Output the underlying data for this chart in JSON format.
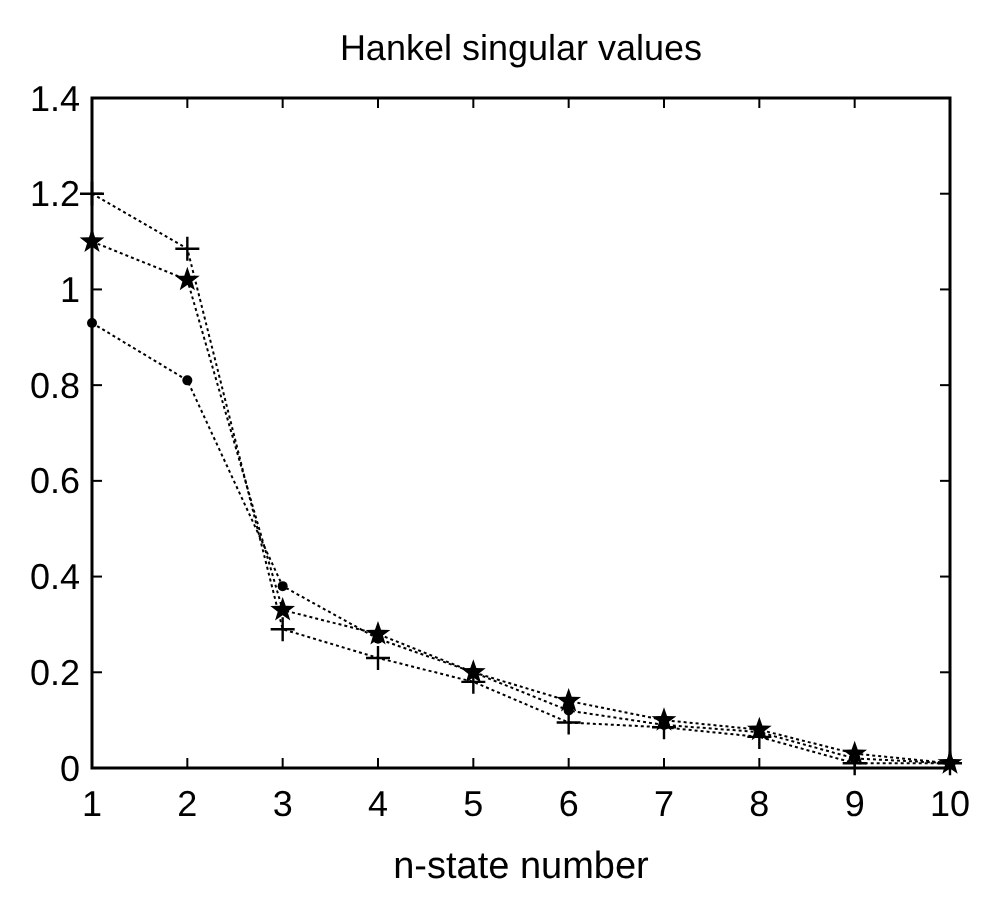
{
  "chart_data": {
    "type": "line",
    "title": "Hankel singular values",
    "xlabel": "n-state number",
    "x": [
      1,
      2,
      3,
      4,
      5,
      6,
      7,
      8,
      9,
      10
    ],
    "xlim": [
      1,
      10
    ],
    "xticks": [
      1,
      2,
      3,
      4,
      5,
      6,
      7,
      8,
      9,
      10
    ],
    "ylim": [
      0,
      1.4
    ],
    "yticks": [
      0,
      0.2,
      0.4,
      0.6,
      0.8,
      1,
      1.2,
      1.4
    ],
    "line_style": "dotted",
    "grid": false,
    "series": [
      {
        "color": "#000000",
        "marker": "cross",
        "values": [
          1.2,
          1.085,
          0.29,
          0.23,
          0.18,
          0.095,
          0.085,
          0.065,
          0.01,
          0.01
        ]
      },
      {
        "color": "#000000",
        "marker": "star",
        "values": [
          1.1,
          1.02,
          0.33,
          0.28,
          0.2,
          0.14,
          0.1,
          0.08,
          0.03,
          0.01
        ]
      },
      {
        "color": "#000000",
        "marker": "circle",
        "values": [
          0.93,
          0.81,
          0.38,
          0.27,
          0.2,
          0.12,
          0.09,
          0.075,
          0.02,
          0.01
        ]
      }
    ]
  }
}
